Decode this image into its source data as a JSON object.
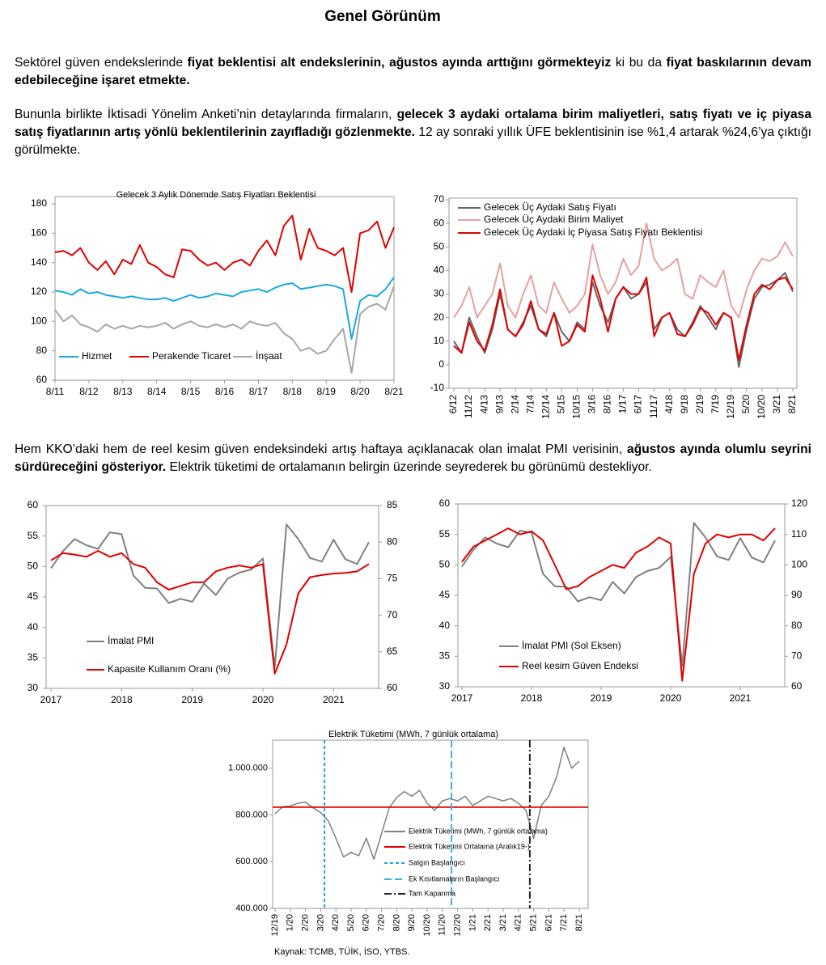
{
  "header": {
    "title": "Genel Görünüm"
  },
  "paragraphs": [
    {
      "runs": [
        {
          "text": "Sektörel güven endekslerinde ",
          "bold": false
        },
        {
          "text": "fiyat beklentisi alt endekslerinin, ağustos ayında arttığını görmekteyiz",
          "bold": true
        },
        {
          "text": " ki bu da ",
          "bold": false
        },
        {
          "text": "fiyat baskılarının devam edebileceğine işaret etmekte.",
          "bold": true
        }
      ]
    },
    {
      "runs": [
        {
          "text": "Bununla birlikte İktisadi Yönelim Anketi’nin detaylarında firmaların, ",
          "bold": false
        },
        {
          "text": "gelecek 3 aydaki ortalama birim maliyetleri, satış fiyatı ve iç piyasa satış fiyatlarının artış yönlü beklentilerinin zayıfladığı gözlenmekte.",
          "bold": true
        },
        {
          "text": " 12 ay sonraki yıllık ÜFE beklentisinin ise %1,4 artarak %24,6’ya çıktığı görülmekte.",
          "bold": false
        }
      ]
    },
    {
      "runs": [
        {
          "text": "Hem KKO’daki hem de reel kesim güven endeksindeki artış haftaya açıklanacak olan imalat PMI verisinin, ",
          "bold": false
        },
        {
          "text": "ağustos ayında olumlu seyrini sürdüreceğini gösteriyor.",
          "bold": true
        },
        {
          "text": " Elektrik tüketimi de ortalamanın belirgin üzerinde seyrederek bu görünümü destekliyor.",
          "bold": false
        }
      ]
    }
  ],
  "chart_data": [
    {
      "type": "line",
      "title": "Gelecek 3 Aylık Dönemde Satış Fiyatları Beklentisi",
      "categories": [
        "8/11",
        null,
        null,
        null,
        "8/12",
        null,
        null,
        null,
        "8/13",
        null,
        null,
        null,
        "8/14",
        null,
        null,
        null,
        "8/15",
        null,
        null,
        null,
        "8/16",
        null,
        null,
        null,
        "8/17",
        null,
        null,
        null,
        "8/18",
        null,
        null,
        null,
        "8/19",
        null,
        null,
        null,
        "8/20",
        null,
        null,
        null,
        "8/21"
      ],
      "ylim": [
        60,
        180
      ],
      "yticks": [
        60,
        80,
        100,
        120,
        140,
        160,
        180
      ],
      "legend": "bottom",
      "series": [
        {
          "name": "Hizmet",
          "color": "#1aa8e0",
          "values": [
            121,
            120,
            118,
            122,
            119,
            120,
            118,
            117,
            116,
            117,
            116,
            115,
            115,
            116,
            114,
            116,
            118,
            116,
            117,
            119,
            118,
            117,
            120,
            121,
            122,
            120,
            123,
            125,
            126,
            122,
            123,
            124,
            125,
            124,
            122,
            88,
            114,
            118,
            117,
            122,
            130
          ]
        },
        {
          "name": "Perakende Ticaret",
          "color": "#e00000",
          "values": [
            147,
            148,
            145,
            150,
            140,
            135,
            141,
            132,
            142,
            139,
            152,
            140,
            137,
            132,
            130,
            149,
            148,
            142,
            138,
            140,
            135,
            140,
            142,
            138,
            148,
            155,
            145,
            165,
            172,
            142,
            163,
            150,
            148,
            145,
            150,
            120,
            160,
            162,
            168,
            150,
            164
          ]
        },
        {
          "name": "İnşaat",
          "color": "#a6a6a6",
          "values": [
            108,
            100,
            104,
            98,
            96,
            93,
            98,
            95,
            97,
            95,
            97,
            96,
            97,
            99,
            95,
            98,
            100,
            97,
            96,
            98,
            96,
            98,
            95,
            100,
            98,
            97,
            99,
            92,
            88,
            80,
            82,
            78,
            80,
            88,
            95,
            65,
            105,
            110,
            112,
            108,
            124
          ]
        }
      ]
    },
    {
      "type": "line",
      "categories": [
        "6/12",
        null,
        "11/12",
        null,
        "4/13",
        null,
        "9/13",
        null,
        "2/14",
        null,
        "7/14",
        null,
        "12/14",
        null,
        "5/15",
        null,
        "10/15",
        null,
        "3/16",
        null,
        "8/16",
        null,
        "1/17",
        null,
        "6/17",
        null,
        "11/17",
        null,
        "4/18",
        null,
        "9/18",
        null,
        "2/19",
        null,
        "7/19",
        null,
        "12/19",
        null,
        "5/20",
        null,
        "10/20",
        null,
        "3/21",
        null,
        "8/21"
      ],
      "ylim": [
        -10,
        70
      ],
      "yticks": [
        -10,
        0,
        10,
        20,
        30,
        40,
        50,
        60,
        70
      ],
      "legend": "top-left",
      "series": [
        {
          "name": "Gelecek Üç Aydaki Satış Fiyatı",
          "color": "#666666",
          "values": [
            10,
            5,
            20,
            12,
            5,
            15,
            30,
            15,
            12,
            18,
            25,
            15,
            12,
            22,
            14,
            10,
            18,
            15,
            35,
            25,
            18,
            28,
            33,
            28,
            30,
            35,
            15,
            20,
            22,
            15,
            12,
            18,
            25,
            20,
            15,
            22,
            20,
            -1,
            15,
            28,
            33,
            34,
            36,
            39,
            31
          ]
        },
        {
          "name": "Gelecek Üç Aydaki Birim Maliyet",
          "color": "#e8a0a0",
          "values": [
            20,
            25,
            33,
            20,
            25,
            30,
            43,
            25,
            20,
            30,
            38,
            25,
            22,
            35,
            28,
            22,
            25,
            30,
            51,
            38,
            30,
            35,
            45,
            38,
            42,
            60,
            45,
            40,
            42,
            45,
            30,
            28,
            38,
            35,
            33,
            40,
            25,
            20,
            32,
            40,
            45,
            44,
            46,
            52,
            46
          ]
        },
        {
          "name": "Gelecek Üç Aydaki İç Piyasa Satış Fiyatı Beklentisi",
          "color": "#e00000",
          "values": [
            8,
            5,
            18,
            10,
            6,
            17,
            32,
            15,
            12,
            17,
            27,
            15,
            13,
            22,
            8,
            10,
            17,
            14,
            38,
            28,
            14,
            28,
            33,
            30,
            30,
            37,
            12,
            20,
            22,
            13,
            12,
            17,
            24,
            22,
            17,
            22,
            20,
            2,
            17,
            30,
            34,
            32,
            36,
            37,
            32
          ]
        }
      ]
    },
    {
      "type": "line",
      "categories": [
        "2017",
        null,
        null,
        null,
        null,
        null,
        "2018",
        null,
        null,
        null,
        null,
        null,
        "2019",
        null,
        null,
        null,
        null,
        null,
        "2020",
        null,
        null,
        null,
        null,
        null,
        "2021",
        null,
        null,
        null
      ],
      "ylim": [
        30,
        60
      ],
      "yticks": [
        30,
        35,
        40,
        45,
        50,
        55,
        60
      ],
      "y2lim": [
        60,
        85
      ],
      "y2ticks": [
        60,
        65,
        70,
        75,
        80,
        85
      ],
      "legend": "bottom-left",
      "series": [
        {
          "name": "İmalat PMI",
          "color": "#808080",
          "values": [
            49.7,
            52.5,
            54.5,
            53.5,
            52.9,
            55.6,
            55.3,
            48.5,
            46.5,
            46.4,
            44,
            44.7,
            44.2,
            47.2,
            45.3,
            48,
            49,
            49.5,
            51.3,
            33.4,
            56.9,
            54.5,
            51.4,
            50.8,
            54.4,
            51.2,
            50.4,
            54
          ]
        },
        {
          "name": "Kapasite Kullanım Oranı (%)",
          "color": "#e00000",
          "axis": "y2",
          "values": [
            77.5,
            78.5,
            78.3,
            78,
            78.8,
            78,
            78.5,
            77,
            76.5,
            74.5,
            73.5,
            74,
            74.5,
            74.5,
            76,
            76.5,
            76.8,
            76.5,
            77,
            62,
            66,
            73,
            75.2,
            75.5,
            75.7,
            75.8,
            76,
            77
          ]
        }
      ]
    },
    {
      "type": "line",
      "categories": [
        "2017",
        null,
        null,
        null,
        null,
        null,
        "2018",
        null,
        null,
        null,
        null,
        null,
        "2019",
        null,
        null,
        null,
        null,
        null,
        "2020",
        null,
        null,
        null,
        null,
        null,
        "2021",
        null,
        null,
        null
      ],
      "ylim": [
        30,
        60
      ],
      "yticks": [
        30,
        35,
        40,
        45,
        50,
        55,
        60
      ],
      "y2lim": [
        60,
        120
      ],
      "y2ticks": [
        60,
        70,
        80,
        90,
        100,
        110,
        120
      ],
      "legend": "bottom-left",
      "series": [
        {
          "name": "İmalat PMI (Sol Eksen)",
          "color": "#808080",
          "values": [
            49.7,
            52.5,
            54.5,
            53.5,
            52.9,
            55.6,
            55.3,
            48.5,
            46.5,
            46.4,
            44,
            44.7,
            44.2,
            47.2,
            45.3,
            48,
            49,
            49.5,
            51.3,
            33.4,
            56.9,
            54.5,
            51.4,
            50.8,
            54.4,
            51.2,
            50.4,
            54
          ]
        },
        {
          "name": "Reel kesim Güven Endeksi",
          "color": "#e00000",
          "axis": "y2",
          "values": [
            101,
            106,
            108,
            110,
            112,
            110,
            111,
            108,
            100,
            92,
            93,
            96,
            98,
            100,
            99,
            104,
            106,
            109,
            107,
            62,
            97,
            107,
            110,
            109,
            110,
            110,
            108,
            112
          ]
        }
      ]
    },
    {
      "type": "line",
      "title": "Elektrik Tüketimi (MWh, 7 günlük ortalama)",
      "categories": [
        "12/19",
        null,
        "1/20",
        null,
        "2/20",
        null,
        "3/20",
        null,
        "4/20",
        null,
        "5/20",
        null,
        "6/20",
        null,
        "7/20",
        null,
        "8/20",
        null,
        "9/20",
        null,
        "10/20",
        null,
        "11/20",
        null,
        "12/20",
        null,
        "1/21",
        null,
        "2/21",
        null,
        "3/21",
        null,
        "4/21",
        null,
        "5/21",
        null,
        "6/21",
        null,
        "7/21",
        null,
        "8/21"
      ],
      "ylim": [
        400000,
        1120000
      ],
      "yticks": [
        {
          "value": 400000,
          "label": "400.000"
        },
        {
          "value": 600000,
          "label": "600.000"
        },
        {
          "value": 800000,
          "label": "800.000"
        },
        {
          "value": 1000000,
          "label": "1.000.000"
        }
      ],
      "legend": "center",
      "series": [
        {
          "name": "Elektrik Tüketimi (MWh, 7 günlük ortalama)",
          "color": "#808080",
          "values": [
            805000,
            835000,
            838000,
            850000,
            855000,
            830000,
            810000,
            775000,
            700000,
            620000,
            640000,
            625000,
            700000,
            610000,
            720000,
            830000,
            875000,
            900000,
            880000,
            905000,
            850000,
            820000,
            860000,
            870000,
            860000,
            880000,
            840000,
            860000,
            880000,
            870000,
            860000,
            870000,
            850000,
            820000,
            700000,
            840000,
            880000,
            960000,
            1090000,
            1000000,
            1030000
          ]
        },
        {
          "name": "Elektrik Tüketimi Ortalama (Aralık19-)",
          "color": "#e00000",
          "value": 833000
        },
        {
          "name": "Salgın Başlangıcı",
          "color": "#1fa6d6",
          "dash": "short",
          "at": 6.5
        },
        {
          "name": "Ek Kısıtlamaların Başlangıcı",
          "color": "#3fb0e0",
          "dash": "long",
          "at": 23.2
        },
        {
          "name": "Tam Kapanma",
          "color": "#222233",
          "dash": "dashdot",
          "at": 33.5
        }
      ]
    }
  ],
  "source": "Kaynak: TCMB, TÜİK, İSO, YTBS."
}
